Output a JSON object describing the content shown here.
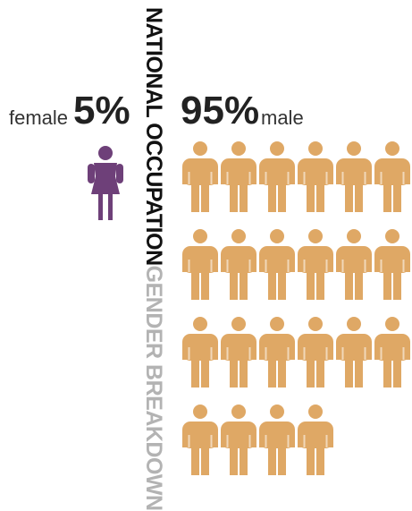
{
  "title_part1": "NATIONAL OCCUPATION",
  "title_part2": "GENDER BREAKDOWN",
  "colors": {
    "female": "#6e4079",
    "male": "#dfa865",
    "title": "#111111",
    "title_accent": "#b3b3b3"
  },
  "chart_data": {
    "type": "pictograph",
    "title": "NATIONAL OCCUPATION GENDER BREAKDOWN",
    "series": [
      {
        "name": "female",
        "label": "female",
        "percent": "5%",
        "value": 5,
        "icons": 1,
        "color": "#6e4079"
      },
      {
        "name": "male",
        "label": "male",
        "percent": "95%",
        "value": 95,
        "icons": 22,
        "color": "#dfa865"
      }
    ]
  }
}
